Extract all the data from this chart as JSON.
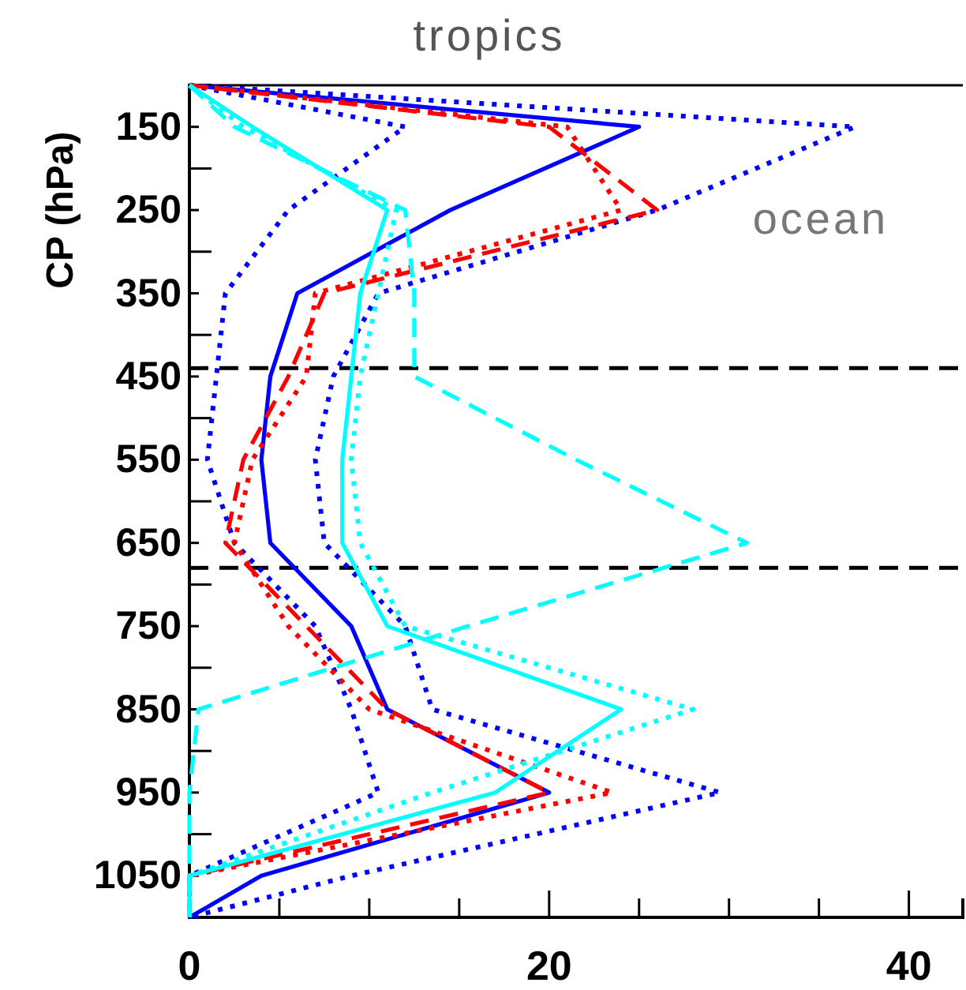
{
  "chart_data": {
    "type": "line",
    "title": "tropics",
    "ylabel": "CP (hPa)",
    "annotations": [
      "ocean"
    ],
    "xlim": [
      0,
      43
    ],
    "xticks": [
      0,
      {
        "value": 5,
        "label": null
      },
      {
        "value": 10,
        "label": null
      },
      {
        "value": 15,
        "label": null
      },
      20,
      {
        "value": 25,
        "label": null
      },
      {
        "value": 30,
        "label": null
      },
      {
        "value": 35,
        "label": null
      },
      40
    ],
    "ylim": [
      1100,
      100
    ],
    "yticks": [
      150,
      {
        "value": 200,
        "label": null
      },
      250,
      {
        "value": 300,
        "label": null
      },
      350,
      {
        "value": 400,
        "label": null
      },
      450,
      {
        "value": 500,
        "label": null
      },
      550,
      {
        "value": 600,
        "label": null
      },
      650,
      {
        "value": 700,
        "label": null
      },
      750,
      {
        "value": 800,
        "label": null
      },
      850,
      {
        "value": 900,
        "label": null
      },
      950,
      {
        "value": 1000,
        "label": null
      },
      1050
    ],
    "grid": false,
    "marker": "none",
    "ref_lines": [
      {
        "axis": "y",
        "value": 440,
        "color": "#000000",
        "line_style": "dashed"
      },
      {
        "axis": "y",
        "value": 680,
        "color": "#000000",
        "line_style": "dashed"
      }
    ],
    "series": [
      {
        "color": "#0000ff",
        "line_style": "solid",
        "x": [
          0,
          25,
          14.5,
          6,
          4.5,
          4,
          4.5,
          9,
          11,
          20,
          4,
          0
        ],
        "values": [
          100,
          150,
          250,
          350,
          450,
          550,
          650,
          750,
          850,
          950,
          1050,
          1100
        ]
      },
      {
        "color": "#0000ff",
        "line_style": "dotted",
        "x": [
          0,
          37,
          26,
          10.5,
          8,
          7,
          7.5,
          12,
          13.5,
          29.5,
          9,
          0
        ],
        "values": [
          100,
          150,
          250,
          350,
          450,
          550,
          650,
          750,
          850,
          950,
          1050,
          1100
        ]
      },
      {
        "color": "#0000ff",
        "line_style": "dotted",
        "x": [
          0,
          12,
          5.5,
          2,
          1.5,
          1,
          2.5,
          7,
          9,
          10.5,
          0,
          0
        ],
        "values": [
          100,
          150,
          250,
          350,
          450,
          550,
          650,
          750,
          850,
          950,
          1050,
          1100
        ]
      },
      {
        "color": "#ff0000",
        "line_style": "dashed",
        "x": [
          0,
          20,
          26,
          7.5,
          5.5,
          3,
          2,
          6.5,
          11,
          20,
          0,
          0
        ],
        "values": [
          100,
          150,
          250,
          350,
          450,
          550,
          650,
          750,
          850,
          950,
          1050,
          1100
        ]
      },
      {
        "color": "#ff0000",
        "line_style": "dotted",
        "x": [
          0,
          21,
          24,
          7,
          6.5,
          3.5,
          2.5,
          5.5,
          10,
          23.5,
          0,
          0
        ],
        "values": [
          100,
          150,
          250,
          350,
          450,
          550,
          650,
          750,
          850,
          950,
          1050,
          1100
        ]
      },
      {
        "color": "#00ffff",
        "line_style": "solid",
        "x": [
          0,
          3.5,
          11,
          9.5,
          9,
          8.5,
          8.5,
          11,
          24,
          17,
          0,
          0
        ],
        "values": [
          100,
          150,
          250,
          350,
          450,
          550,
          650,
          750,
          850,
          950,
          1050,
          1100
        ]
      },
      {
        "color": "#00ffff",
        "line_style": "dotted",
        "x": [
          0,
          3,
          11.5,
          10.5,
          9.5,
          9,
          9.5,
          12,
          28,
          13.5,
          0,
          0
        ],
        "values": [
          100,
          150,
          250,
          350,
          450,
          550,
          650,
          750,
          850,
          950,
          1050,
          1100
        ]
      },
      {
        "color": "#00ffff",
        "line_style": "dashed",
        "x": [
          0,
          2.5,
          12,
          12.5,
          12.5,
          21.5,
          31,
          15.5,
          0.5,
          0,
          0,
          0
        ],
        "values": [
          100,
          150,
          250,
          350,
          450,
          550,
          650,
          750,
          850,
          950,
          1050,
          1100
        ]
      }
    ]
  }
}
